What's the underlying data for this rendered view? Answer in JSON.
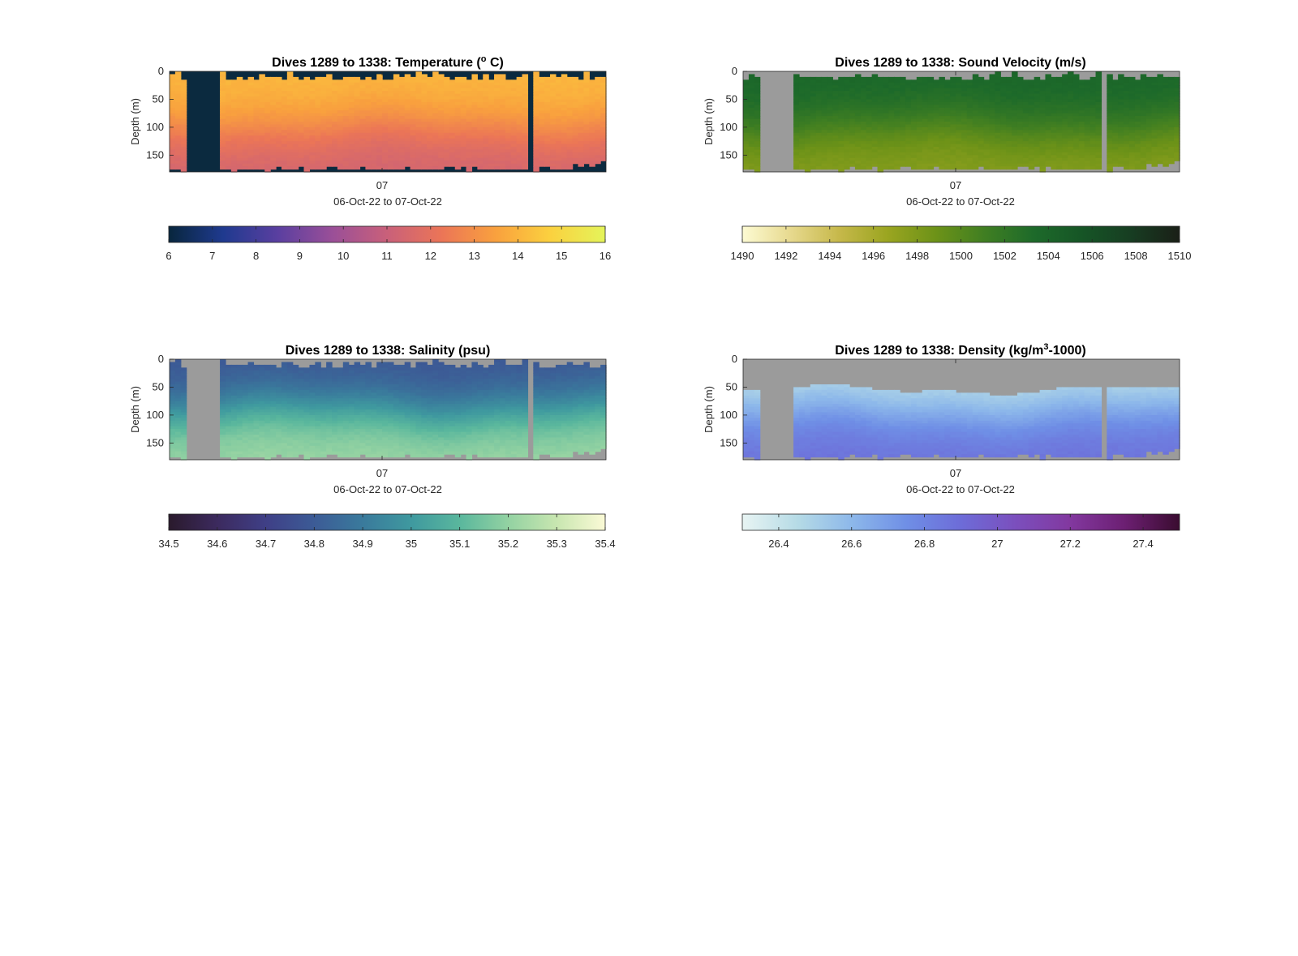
{
  "chart_data": [
    {
      "type": "heatmap",
      "title": "Dives 1289 to 1338: Temperature (",
      "title_sup": "o",
      "title_suffix": " C)",
      "ylabel": "Depth (m)",
      "xlabel": "06-Oct-22 to 07-Oct-22",
      "x_ticks": [
        "07"
      ],
      "y_ticks": [
        0,
        50,
        100,
        150
      ],
      "ylim": [
        0,
        180
      ],
      "y_reversed": true,
      "colorbar": {
        "min": 6,
        "max": 16,
        "ticks": [
          "6",
          "7",
          "8",
          "9",
          "10",
          "11",
          "12",
          "13",
          "14",
          "15",
          "16"
        ],
        "stops": [
          "#08263d",
          "#1f3a8f",
          "#5a3fa0",
          "#9a4f98",
          "#c9607a",
          "#eb7557",
          "#f9a13e",
          "#fbd13f",
          "#e4f45a"
        ]
      },
      "mask_color": "#0b2a3f",
      "field": {
        "surface_value": 14.1,
        "deep_value": 11.3,
        "thermocline_depth": 100
      },
      "gaps": [
        [
          0.04,
          0.12
        ],
        [
          0.82,
          0.838
        ]
      ]
    },
    {
      "type": "heatmap",
      "title": "Dives 1289 to 1338: Sound Velocity (m/s)",
      "ylabel": "Depth (m)",
      "xlabel": "06-Oct-22 to 07-Oct-22",
      "x_ticks": [
        "07"
      ],
      "y_ticks": [
        0,
        50,
        100,
        150
      ],
      "ylim": [
        0,
        180
      ],
      "y_reversed": true,
      "colorbar": {
        "min": 1490,
        "max": 1510,
        "ticks": [
          "1490",
          "1492",
          "1494",
          "1496",
          "1498",
          "1500",
          "1502",
          "1504",
          "1506",
          "1508",
          "1510"
        ],
        "stops": [
          "#fdfbd3",
          "#e7d98e",
          "#c6b84a",
          "#9aa520",
          "#6c9218",
          "#3f7e22",
          "#1d6a2a",
          "#165526",
          "#173d22",
          "#1a1f17"
        ]
      },
      "mask_color": "#9b9b9b",
      "field": {
        "surface_value": 1503.8,
        "deep_value": 1497.5,
        "thermocline_depth": 100
      },
      "gaps": [
        [
          0.04,
          0.12
        ],
        [
          0.82,
          0.838
        ]
      ]
    },
    {
      "type": "heatmap",
      "title": "Dives 1289 to 1338: Salinity (psu)",
      "ylabel": "Depth (m)",
      "xlabel": "06-Oct-22 to 07-Oct-22",
      "x_ticks": [
        "07"
      ],
      "y_ticks": [
        0,
        50,
        100,
        150
      ],
      "ylim": [
        0,
        180
      ],
      "y_reversed": true,
      "colorbar": {
        "min": 34.5,
        "max": 35.4,
        "ticks": [
          "34.5",
          "34.6",
          "34.7",
          "34.8",
          "34.9",
          "35",
          "35.1",
          "35.2",
          "35.3",
          "35.4"
        ],
        "stops": [
          "#2a1a2c",
          "#3c2a5e",
          "#3f3f86",
          "#3c5b96",
          "#3a7a9c",
          "#3f999f",
          "#5ab79d",
          "#93d2a2",
          "#c8e6b0",
          "#fbfad6"
        ]
      },
      "mask_color": "#9b9b9b",
      "field": {
        "surface_value": 34.78,
        "deep_value": 35.22,
        "thermocline_depth": 90
      },
      "gaps": [
        [
          0.04,
          0.12
        ],
        [
          0.82,
          0.838
        ]
      ]
    },
    {
      "type": "heatmap",
      "title": "Dives 1289 to 1338: Density (kg/m",
      "title_sup": "3",
      "title_suffix": "-1000)",
      "ylabel": "Depth (m)",
      "xlabel": "06-Oct-22 to 07-Oct-22",
      "x_ticks": [
        "07"
      ],
      "y_ticks": [
        0,
        50,
        100,
        150
      ],
      "ylim": [
        0,
        180
      ],
      "y_reversed": true,
      "colorbar": {
        "min": 26.3,
        "max": 27.5,
        "ticks": [
          "26.4",
          "26.6",
          "26.8",
          "27",
          "27.2",
          "27.4"
        ],
        "tick_values": [
          26.4,
          26.6,
          26.8,
          27.0,
          27.2,
          27.4
        ],
        "stops": [
          "#e8f4f3",
          "#b6dbe6",
          "#8db8ea",
          "#6f8fe6",
          "#6d6cd8",
          "#7b4fbd",
          "#82389f",
          "#6c1f72",
          "#3a0c30"
        ]
      },
      "mask_color": "#9b9b9b",
      "field": {
        "surface_value": 26.42,
        "deep_value": 26.88,
        "thermocline_depth": 95
      },
      "gaps": [
        [
          0.04,
          0.12
        ],
        [
          0.82,
          0.838
        ]
      ]
    }
  ]
}
